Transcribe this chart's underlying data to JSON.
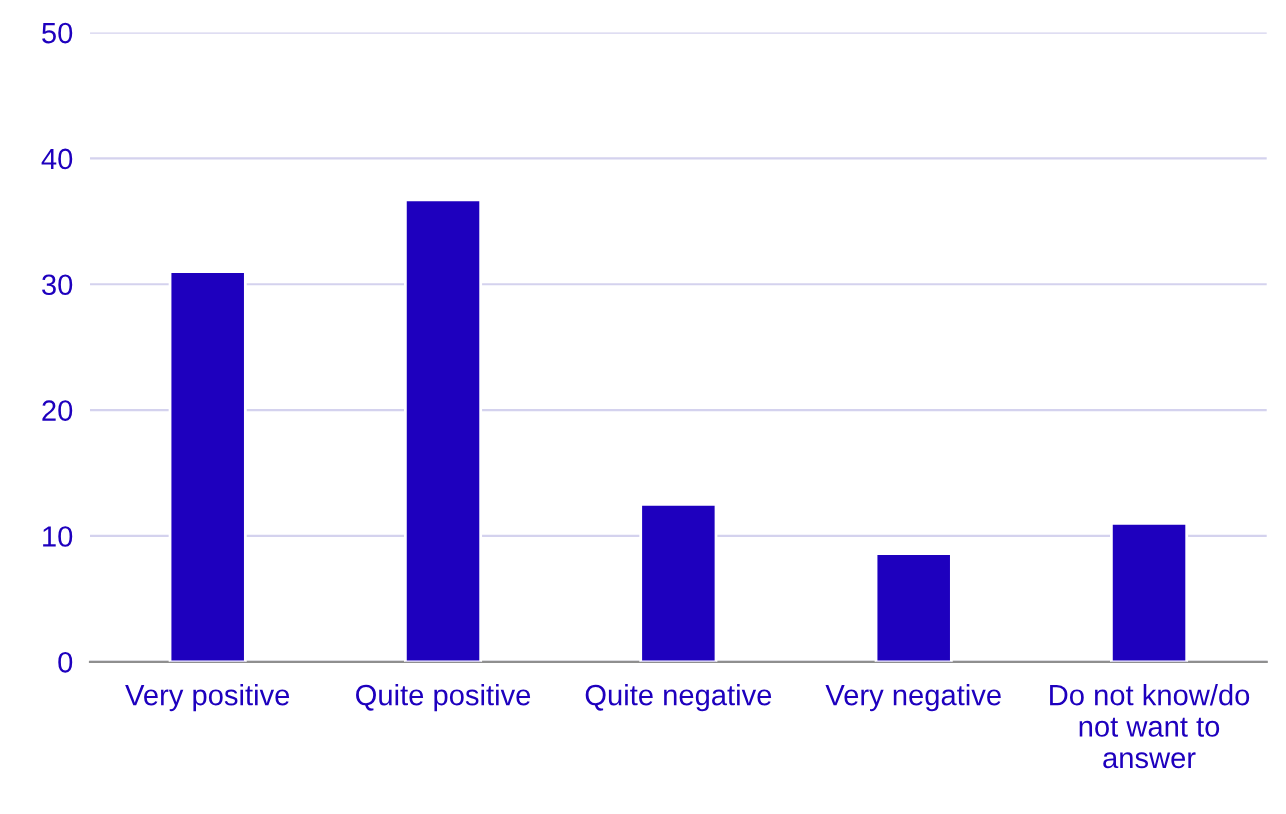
{
  "chart_data": {
    "type": "bar",
    "categories": [
      "Very positive",
      "Quite positive",
      "Quite negative",
      "Very negative",
      "Do not know/do\nnot want to\nanswer"
    ],
    "values": [
      31.0,
      36.7,
      12.5,
      8.6,
      11.0
    ],
    "color": "#1e00be",
    "ylim": [
      0,
      50
    ],
    "yticks": [
      0,
      10,
      20,
      30,
      40,
      50
    ],
    "grid": "y"
  }
}
